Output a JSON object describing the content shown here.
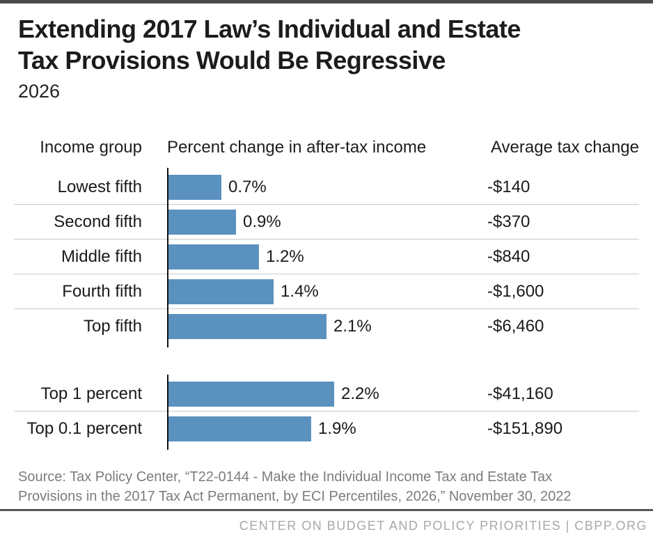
{
  "title": {
    "line1": "Extending 2017 Law’s Individual and Estate",
    "line2": "Tax Provisions Would Be Regressive",
    "subtitle": "2026"
  },
  "columns": {
    "income_group": "Income group",
    "percent_change": "Percent change in after-tax income",
    "avg_tax_change": "Average tax change"
  },
  "table": {
    "groups": [
      {
        "rows": [
          {
            "label": "Lowest fifth",
            "percent": 0.7,
            "percent_label": "0.7%",
            "tax_change": "-$140"
          },
          {
            "label": "Second fifth",
            "percent": 0.9,
            "percent_label": "0.9%",
            "tax_change": "-$370"
          },
          {
            "label": "Middle fifth",
            "percent": 1.2,
            "percent_label": "1.2%",
            "tax_change": "-$840"
          },
          {
            "label": "Fourth fifth",
            "percent": 1.4,
            "percent_label": "1.4%",
            "tax_change": "-$1,600"
          },
          {
            "label": "Top fifth",
            "percent": 2.1,
            "percent_label": "2.1%",
            "tax_change": "-$6,460"
          }
        ]
      },
      {
        "rows": [
          {
            "label": "Top 1 percent",
            "percent": 2.2,
            "percent_label": "2.2%",
            "tax_change": "-$41,160"
          },
          {
            "label": "Top 0.1 percent",
            "percent": 1.9,
            "percent_label": "1.9%",
            "tax_change": "-$151,890"
          }
        ]
      }
    ]
  },
  "chart_data": {
    "type": "bar",
    "orientation": "horizontal",
    "title": "Extending 2017 Law’s Individual and Estate Tax Provisions Would Be Regressive",
    "subtitle": "2026",
    "categories": [
      "Lowest fifth",
      "Second fifth",
      "Middle fifth",
      "Fourth fifth",
      "Top fifth",
      "Top 1 percent",
      "Top 0.1 percent"
    ],
    "series": [
      {
        "name": "Percent change in after-tax income",
        "unit": "%",
        "values": [
          0.7,
          0.9,
          1.2,
          1.4,
          2.1,
          2.2,
          1.9
        ]
      },
      {
        "name": "Average tax change",
        "unit": "USD",
        "values": [
          -140,
          -370,
          -840,
          -1600,
          -6460,
          -41160,
          -151890
        ]
      }
    ],
    "xlim": [
      0,
      2.2
    ],
    "grid": false,
    "legend": "none",
    "bar_color": "#5B91BF"
  },
  "colors": {
    "bar": "#5B91BF",
    "top_accent": "#4A4B4D",
    "axis": "#111111",
    "divider": "#C9C9C9",
    "source_text": "#7C7C7C",
    "footer_text": "#A8A8A8"
  },
  "source": {
    "lines": [
      "Source: Tax Policy Center, “T22-0144 - Make the Individual Income Tax and Estate Tax",
      "Provisions in the 2017 Tax Act Permanent, by ECI Percentiles, 2026,” November 30, 2022"
    ]
  },
  "footer": {
    "credit": "CENTER ON BUDGET AND POLICY PRIORITIES | CBPP.ORG"
  }
}
